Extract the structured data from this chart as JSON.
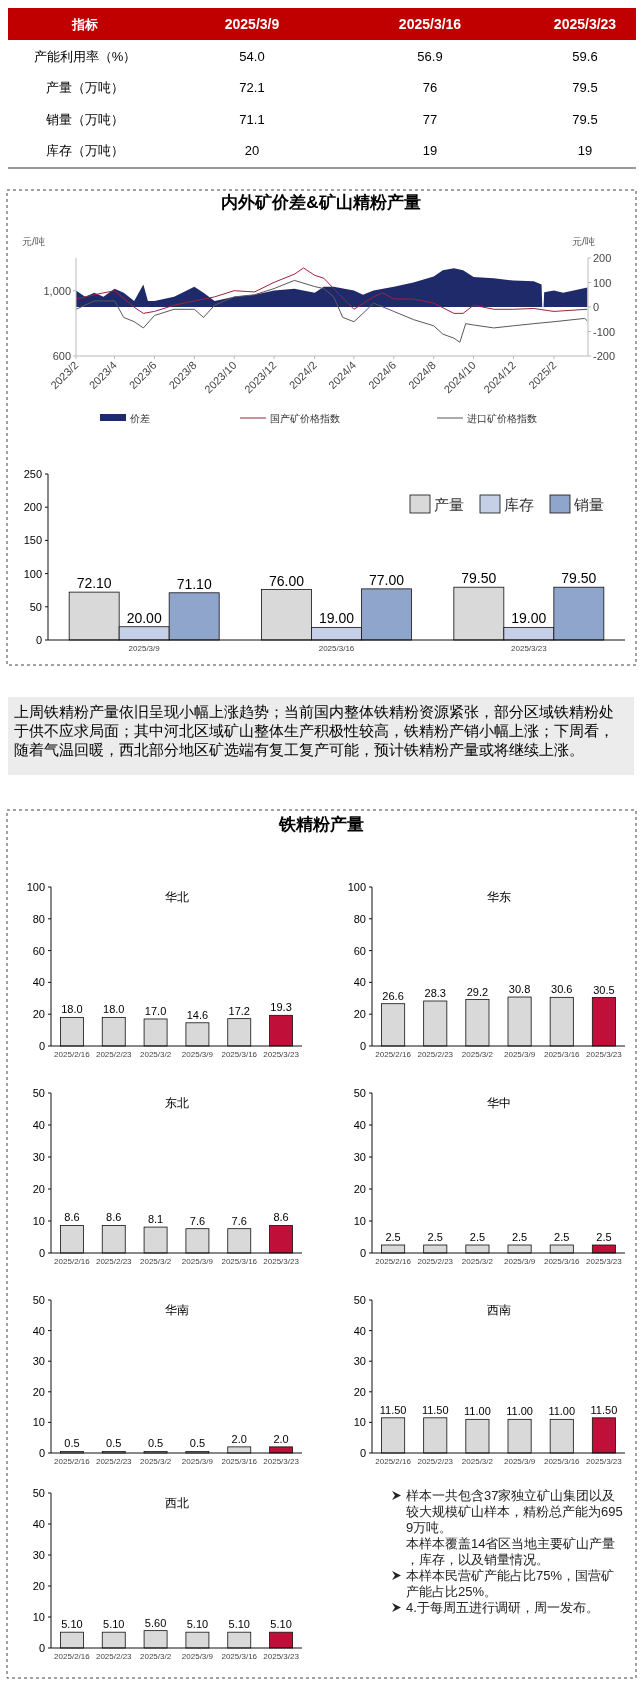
{
  "chart_data": [
    {
      "type": "heatmap",
      "ylabel": "指标",
      "categories": [
        "2025/3/9",
        "2025/3/16",
        "2025/3/23"
      ],
      "y_categories": [
        "产能利用率（%）",
        "产量（万吨）",
        "销量（万吨）",
        "库存（万吨）"
      ],
      "cells": [
        [
          54.0,
          56.9,
          59.6
        ],
        [
          72.1,
          76,
          79.5
        ],
        [
          71.1,
          77,
          79.5
        ],
        [
          20,
          19,
          19
        ]
      ],
      "cell_labels": [
        [
          "54.0",
          "56.9",
          "59.6"
        ],
        [
          "72.1",
          "76",
          "79.5"
        ],
        [
          "71.1",
          "77",
          "79.5"
        ],
        [
          "20",
          "19",
          "19"
        ]
      ]
    },
    {
      "type": "line",
      "title": "内外矿价差&矿山精粉产量",
      "ylabel": "元/吨",
      "y2label": "元/吨",
      "legend": "bottom",
      "xlim": [
        "2023-02-01",
        "2025-03-25"
      ],
      "xticks": [
        {
          "value": "2023-02-01",
          "label": "2023/2"
        },
        {
          "value": "2023-04-01",
          "label": "2023/4"
        },
        {
          "value": "2023-06-01",
          "label": "2023/6"
        },
        {
          "value": "2023-08-01",
          "label": "2023/8"
        },
        {
          "value": "2023-10-01",
          "label": "2023/10"
        },
        {
          "value": "2023-12-01",
          "label": "2023/12"
        },
        {
          "value": "2024-02-01",
          "label": "2024/2"
        },
        {
          "value": "2024-04-01",
          "label": "2024/4"
        },
        {
          "value": "2024-06-01",
          "label": "2024/6"
        },
        {
          "value": "2024-08-01",
          "label": "2024/8"
        },
        {
          "value": "2024-10-01",
          "label": "2024/10"
        },
        {
          "value": "2024-12-01",
          "label": "2024/12"
        },
        {
          "value": "2025-02-01",
          "label": "2025/2"
        }
      ],
      "ylim": [
        600,
        1200
      ],
      "yticks": [
        600,
        {
          "value": 1000,
          "label": "1,000"
        }
      ],
      "y2lim": [
        -200,
        200
      ],
      "y2ticks": [
        -200,
        -100,
        0,
        100,
        200
      ],
      "series": [
        {
          "name": "价差",
          "type": "area",
          "axis": "y2",
          "color": "#1f2a6b",
          "x": [
            "2023-02-01",
            "2023-02-15",
            "2023-03-01",
            "2023-03-15",
            "2023-04-01",
            "2023-04-15",
            "2023-05-01",
            "2023-05-15",
            "2023-05-22",
            "2023-06-01",
            "2023-07-01",
            "2023-08-01",
            "2023-08-15",
            "2023-09-01",
            "2023-10-01",
            "2023-11-01",
            "2023-12-01",
            "2024-01-01",
            "2024-02-01",
            "2024-02-15",
            "2024-03-01",
            "2024-04-01",
            "2024-04-15",
            "2024-05-01",
            "2024-06-01",
            "2024-07-01",
            "2024-08-01",
            "2024-08-15",
            "2024-09-01",
            "2024-09-15",
            "2024-10-01",
            "2024-11-01",
            "2024-12-01",
            "2025-01-01",
            "2025-01-13",
            "2025-01-14",
            "2025-01-16",
            "2025-01-17",
            "2025-02-01",
            "2025-02-15",
            "2025-03-24"
          ],
          "values": [
            67,
            42,
            58,
            42,
            75,
            58,
            25,
            92,
            25,
            25,
            42,
            83,
            58,
            25,
            42,
            50,
            67,
            75,
            58,
            83,
            83,
            67,
            50,
            67,
            83,
            100,
            125,
            150,
            158,
            150,
            122,
            117,
            108,
            105,
            92,
            0,
            0,
            60,
            67,
            58,
            80
          ]
        },
        {
          "name": "国产矿价格指数",
          "type": "line",
          "color": "#a0213a",
          "x": [
            "2023-02-01",
            "2023-03-01",
            "2023-04-01",
            "2023-05-01",
            "2023-05-15",
            "2023-06-01",
            "2023-07-01",
            "2023-08-01",
            "2023-09-01",
            "2023-10-01",
            "2023-11-01",
            "2023-12-01",
            "2024-01-01",
            "2024-01-15",
            "2024-02-01",
            "2024-02-15",
            "2024-03-01",
            "2024-04-01",
            "2024-05-01",
            "2024-05-15",
            "2024-06-01",
            "2024-07-01",
            "2024-08-01",
            "2024-09-01",
            "2024-09-15",
            "2024-10-01",
            "2024-11-01",
            "2024-12-01",
            "2025-01-01",
            "2025-02-01",
            "2025-03-24"
          ],
          "values": [
            949,
            975,
            1000,
            899,
            861,
            873,
            911,
            937,
            962,
            1000,
            992,
            1051,
            1101,
            1139,
            1094,
            1076,
            1013,
            886,
            962,
            987,
            949,
            949,
            924,
            861,
            861,
            911,
            886,
            886,
            891,
            873,
            886
          ]
        },
        {
          "name": "进口矿价格指数",
          "type": "line",
          "color": "#595959",
          "x": [
            "2023-02-01",
            "2023-03-01",
            "2023-04-01",
            "2023-04-15",
            "2023-05-01",
            "2023-05-15",
            "2023-06-01",
            "2023-07-01",
            "2023-08-01",
            "2023-08-15",
            "2023-09-01",
            "2023-10-01",
            "2023-11-01",
            "2023-12-01",
            "2024-01-01",
            "2024-02-01",
            "2024-02-15",
            "2024-03-01",
            "2024-03-15",
            "2024-04-01",
            "2024-04-15",
            "2024-05-01",
            "2024-06-01",
            "2024-07-01",
            "2024-08-01",
            "2024-08-15",
            "2024-09-01",
            "2024-09-10",
            "2024-09-19",
            "2024-10-01",
            "2024-11-01",
            "2024-12-01",
            "2025-01-01",
            "2025-02-01",
            "2025-03-20",
            "2025-03-24"
          ],
          "values": [
            886,
            937,
            937,
            836,
            810,
            772,
            848,
            886,
            886,
            836,
            911,
            962,
            975,
            1013,
            1063,
            1025,
            1013,
            962,
            836,
            810,
            861,
            924,
            873,
            823,
            785,
            734,
            709,
            684,
            798,
            790,
            772,
            785,
            798,
            810,
            830,
            815
          ]
        }
      ]
    },
    {
      "type": "bar",
      "legend": "top right",
      "categories": [
        "2025/3/9",
        "2025/3/16",
        "2025/3/23"
      ],
      "ylim": [
        0,
        250
      ],
      "yticks": [
        0,
        50,
        100,
        150,
        200,
        250
      ],
      "series": [
        {
          "name": "产量",
          "color": "#d9d9d9",
          "values": [
            72.1,
            76,
            79.5
          ],
          "value_labels": [
            "72.10",
            "76.00",
            "79.50"
          ]
        },
        {
          "name": "库存",
          "color": "#c5d0e6",
          "values": [
            20,
            19,
            19
          ],
          "value_labels": [
            "20.00",
            "19.00",
            "19.00"
          ]
        },
        {
          "name": "销量",
          "color": "#8fa5cc",
          "values": [
            71.1,
            77,
            79.5
          ],
          "value_labels": [
            "71.10",
            "77.00",
            "79.50"
          ]
        }
      ]
    },
    {
      "type": "other",
      "annotations": [
        "上周铁精粉产量依旧呈现小幅上涨趋势；当前国内整体铁精粉资源紧张，部分区域铁精粉处于供不应求局面；其中河北区域矿山整体生产积极性较高，铁精粉产销小幅上涨；下周看，随着气温回暖，西北部分地区矿选端有复工复产可能，预计铁精粉产量或将继续上涨。"
      ]
    },
    {
      "type": "other",
      "title": "铁精粉产量"
    },
    {
      "type": "bar",
      "title": "华北",
      "categories": [
        "2025/2/16",
        "2025/2/23",
        "2025/3/2",
        "2025/3/9",
        "2025/3/16",
        "2025/3/23"
      ],
      "ylim": [
        0,
        100
      ],
      "yticks": [
        0,
        20,
        40,
        60,
        80,
        100
      ],
      "values": [
        18.0,
        18.0,
        17.0,
        14.6,
        17.2,
        19.3
      ],
      "value_labels": [
        "18.0",
        "18.0",
        "17.0",
        "14.6",
        "17.2",
        "19.3"
      ],
      "colors": [
        "#d9d9d9",
        "#d9d9d9",
        "#d9d9d9",
        "#d9d9d9",
        "#d9d9d9",
        "#c0103a"
      ]
    },
    {
      "type": "bar",
      "title": "华东",
      "categories": [
        "2025/2/16",
        "2025/2/23",
        "2025/3/2",
        "2025/3/9",
        "2025/3/16",
        "2025/3/23"
      ],
      "ylim": [
        0,
        100
      ],
      "yticks": [
        0,
        20,
        40,
        60,
        80,
        100
      ],
      "values": [
        26.6,
        28.3,
        29.2,
        30.8,
        30.6,
        30.5
      ],
      "data_labels": true,
      "colors": [
        "#d9d9d9",
        "#d9d9d9",
        "#d9d9d9",
        "#d9d9d9",
        "#d9d9d9",
        "#c0103a"
      ]
    },
    {
      "type": "bar",
      "title": "东北",
      "categories": [
        "2025/2/16",
        "2025/2/23",
        "2025/3/2",
        "2025/3/9",
        "2025/3/16",
        "2025/3/23"
      ],
      "ylim": [
        0,
        50
      ],
      "yticks": [
        0,
        10,
        20,
        30,
        40,
        50
      ],
      "values": [
        8.6,
        8.6,
        8.1,
        7.6,
        7.6,
        8.6
      ],
      "data_labels": true,
      "colors": [
        "#d9d9d9",
        "#d9d9d9",
        "#d9d9d9",
        "#d9d9d9",
        "#d9d9d9",
        "#c0103a"
      ]
    },
    {
      "type": "bar",
      "title": "华中",
      "categories": [
        "2025/2/16",
        "2025/2/23",
        "2025/3/2",
        "2025/3/9",
        "2025/3/16",
        "2025/3/23"
      ],
      "ylim": [
        0,
        50
      ],
      "yticks": [
        0,
        10,
        20,
        30,
        40,
        50
      ],
      "values": [
        2.5,
        2.5,
        2.5,
        2.5,
        2.5,
        2.5
      ],
      "data_labels": true,
      "colors": [
        "#d9d9d9",
        "#d9d9d9",
        "#d9d9d9",
        "#d9d9d9",
        "#d9d9d9",
        "#c0103a"
      ]
    },
    {
      "type": "bar",
      "title": "华南",
      "categories": [
        "2025/2/16",
        "2025/2/23",
        "2025/3/2",
        "2025/3/9",
        "2025/3/16",
        "2025/3/23"
      ],
      "ylim": [
        0,
        50
      ],
      "yticks": [
        0,
        10,
        20,
        30,
        40,
        50
      ],
      "values": [
        0.5,
        0.5,
        0.5,
        0.5,
        2.0,
        2.0
      ],
      "value_labels": [
        "0.5",
        "0.5",
        "0.5",
        "0.5",
        "2.0",
        "2.0"
      ],
      "colors": [
        "#d9d9d9",
        "#d9d9d9",
        "#d9d9d9",
        "#d9d9d9",
        "#d9d9d9",
        "#c0103a"
      ]
    },
    {
      "type": "bar",
      "title": "西南",
      "categories": [
        "2025/2/16",
        "2025/2/23",
        "2025/3/2",
        "2025/3/9",
        "2025/3/16",
        "2025/3/23"
      ],
      "ylim": [
        0,
        50
      ],
      "yticks": [
        0,
        10,
        20,
        30,
        40,
        50
      ],
      "values": [
        11.5,
        11.5,
        11.0,
        11.0,
        11.0,
        11.5
      ],
      "value_labels": [
        "11.50",
        "11.50",
        "11.00",
        "11.00",
        "11.00",
        "11.50"
      ],
      "colors": [
        "#d9d9d9",
        "#d9d9d9",
        "#d9d9d9",
        "#d9d9d9",
        "#d9d9d9",
        "#c0103a"
      ]
    },
    {
      "type": "bar",
      "title": "西北",
      "categories": [
        "2025/2/16",
        "2025/2/23",
        "2025/3/2",
        "2025/3/9",
        "2025/3/16",
        "2025/3/23"
      ],
      "ylim": [
        0,
        50
      ],
      "yticks": [
        0,
        10,
        20,
        30,
        40,
        50
      ],
      "values": [
        5.1,
        5.1,
        5.6,
        5.1,
        5.1,
        5.1
      ],
      "value_labels": [
        "5.10",
        "5.10",
        "5.60",
        "5.10",
        "5.10",
        "5.10"
      ],
      "colors": [
        "#d9d9d9",
        "#d9d9d9",
        "#d9d9d9",
        "#d9d9d9",
        "#d9d9d9",
        "#c0103a"
      ]
    },
    {
      "type": "other",
      "annotations": [
        "样本一共包含37家独立矿山集团以及较大规模矿山样本，精粉总产能为6959万吨。",
        "本样本覆盖14省区当地主要矿山产量，库存，以及销量情况。",
        "本样本民营矿产能占比75%，国营矿产能占比25%。",
        "4.于每周五进行调研，周一发布。"
      ]
    }
  ]
}
